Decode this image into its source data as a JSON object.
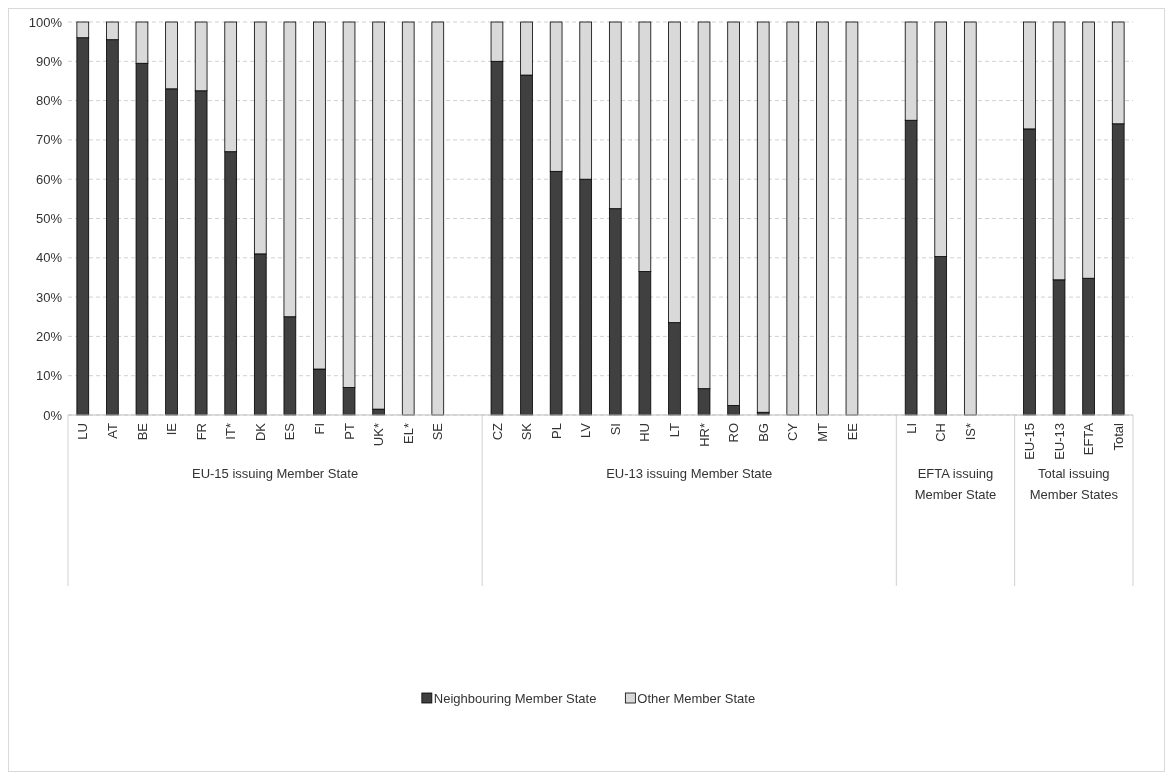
{
  "chart_data": {
    "type": "bar",
    "stacked": true,
    "categories": [
      "LU",
      "AT",
      "BE",
      "IE",
      "FR",
      "IT*",
      "DK",
      "ES",
      "FI",
      "PT",
      "UK*",
      "EL*",
      "SE",
      null,
      "CZ",
      "SK",
      "PL",
      "LV",
      "SI",
      "HU",
      "LT",
      "HR*",
      "RO",
      "BG",
      "CY",
      "MT",
      "EE",
      null,
      "LI",
      "CH",
      "IS*",
      null,
      "EU-15",
      "EU-13",
      "EFTA",
      "Total"
    ],
    "series": [
      {
        "name": "Neighbouring Member State",
        "color": "#404040",
        "values": [
          96,
          95.5,
          89.5,
          83,
          82.5,
          67,
          41,
          25,
          11.7,
          7,
          1.5,
          0,
          0,
          null,
          90,
          86.5,
          62,
          60,
          52.5,
          36.5,
          23.5,
          6.7,
          2.4,
          0.7,
          0,
          0,
          0,
          null,
          75,
          40.3,
          0,
          null,
          72.8,
          34.4,
          34.8,
          74.1
        ]
      },
      {
        "name": "Other Member State",
        "color": "#d9d9d9",
        "values": [
          4,
          4.5,
          10.5,
          17,
          17.5,
          33,
          59,
          75,
          88.3,
          93,
          98.5,
          100,
          100,
          null,
          10,
          13.5,
          38,
          40,
          47.5,
          63.5,
          76.5,
          93.3,
          97.6,
          99.3,
          100,
          100,
          100,
          null,
          25,
          59.7,
          100,
          null,
          27.2,
          65.6,
          65.2,
          25.9
        ]
      }
    ],
    "annotations": [
      "EU-15 issuing Member State",
      "EU-13 issuing Member State",
      "EFTA issuing Member State",
      "Total issuing Member States"
    ],
    "ylim": [
      0,
      100
    ],
    "yticks": [
      {
        "value": 0,
        "label": "0%"
      },
      {
        "value": 10,
        "label": "10%"
      },
      {
        "value": 20,
        "label": "20%"
      },
      {
        "value": 30,
        "label": "30%"
      },
      {
        "value": 40,
        "label": "40%"
      },
      {
        "value": 50,
        "label": "50%"
      },
      {
        "value": 60,
        "label": "60%"
      },
      {
        "value": 70,
        "label": "70%"
      },
      {
        "value": 80,
        "label": "80%"
      },
      {
        "value": 90,
        "label": "90%"
      },
      {
        "value": 100,
        "label": "100%"
      }
    ],
    "grid": "y",
    "legend": "bottom"
  }
}
